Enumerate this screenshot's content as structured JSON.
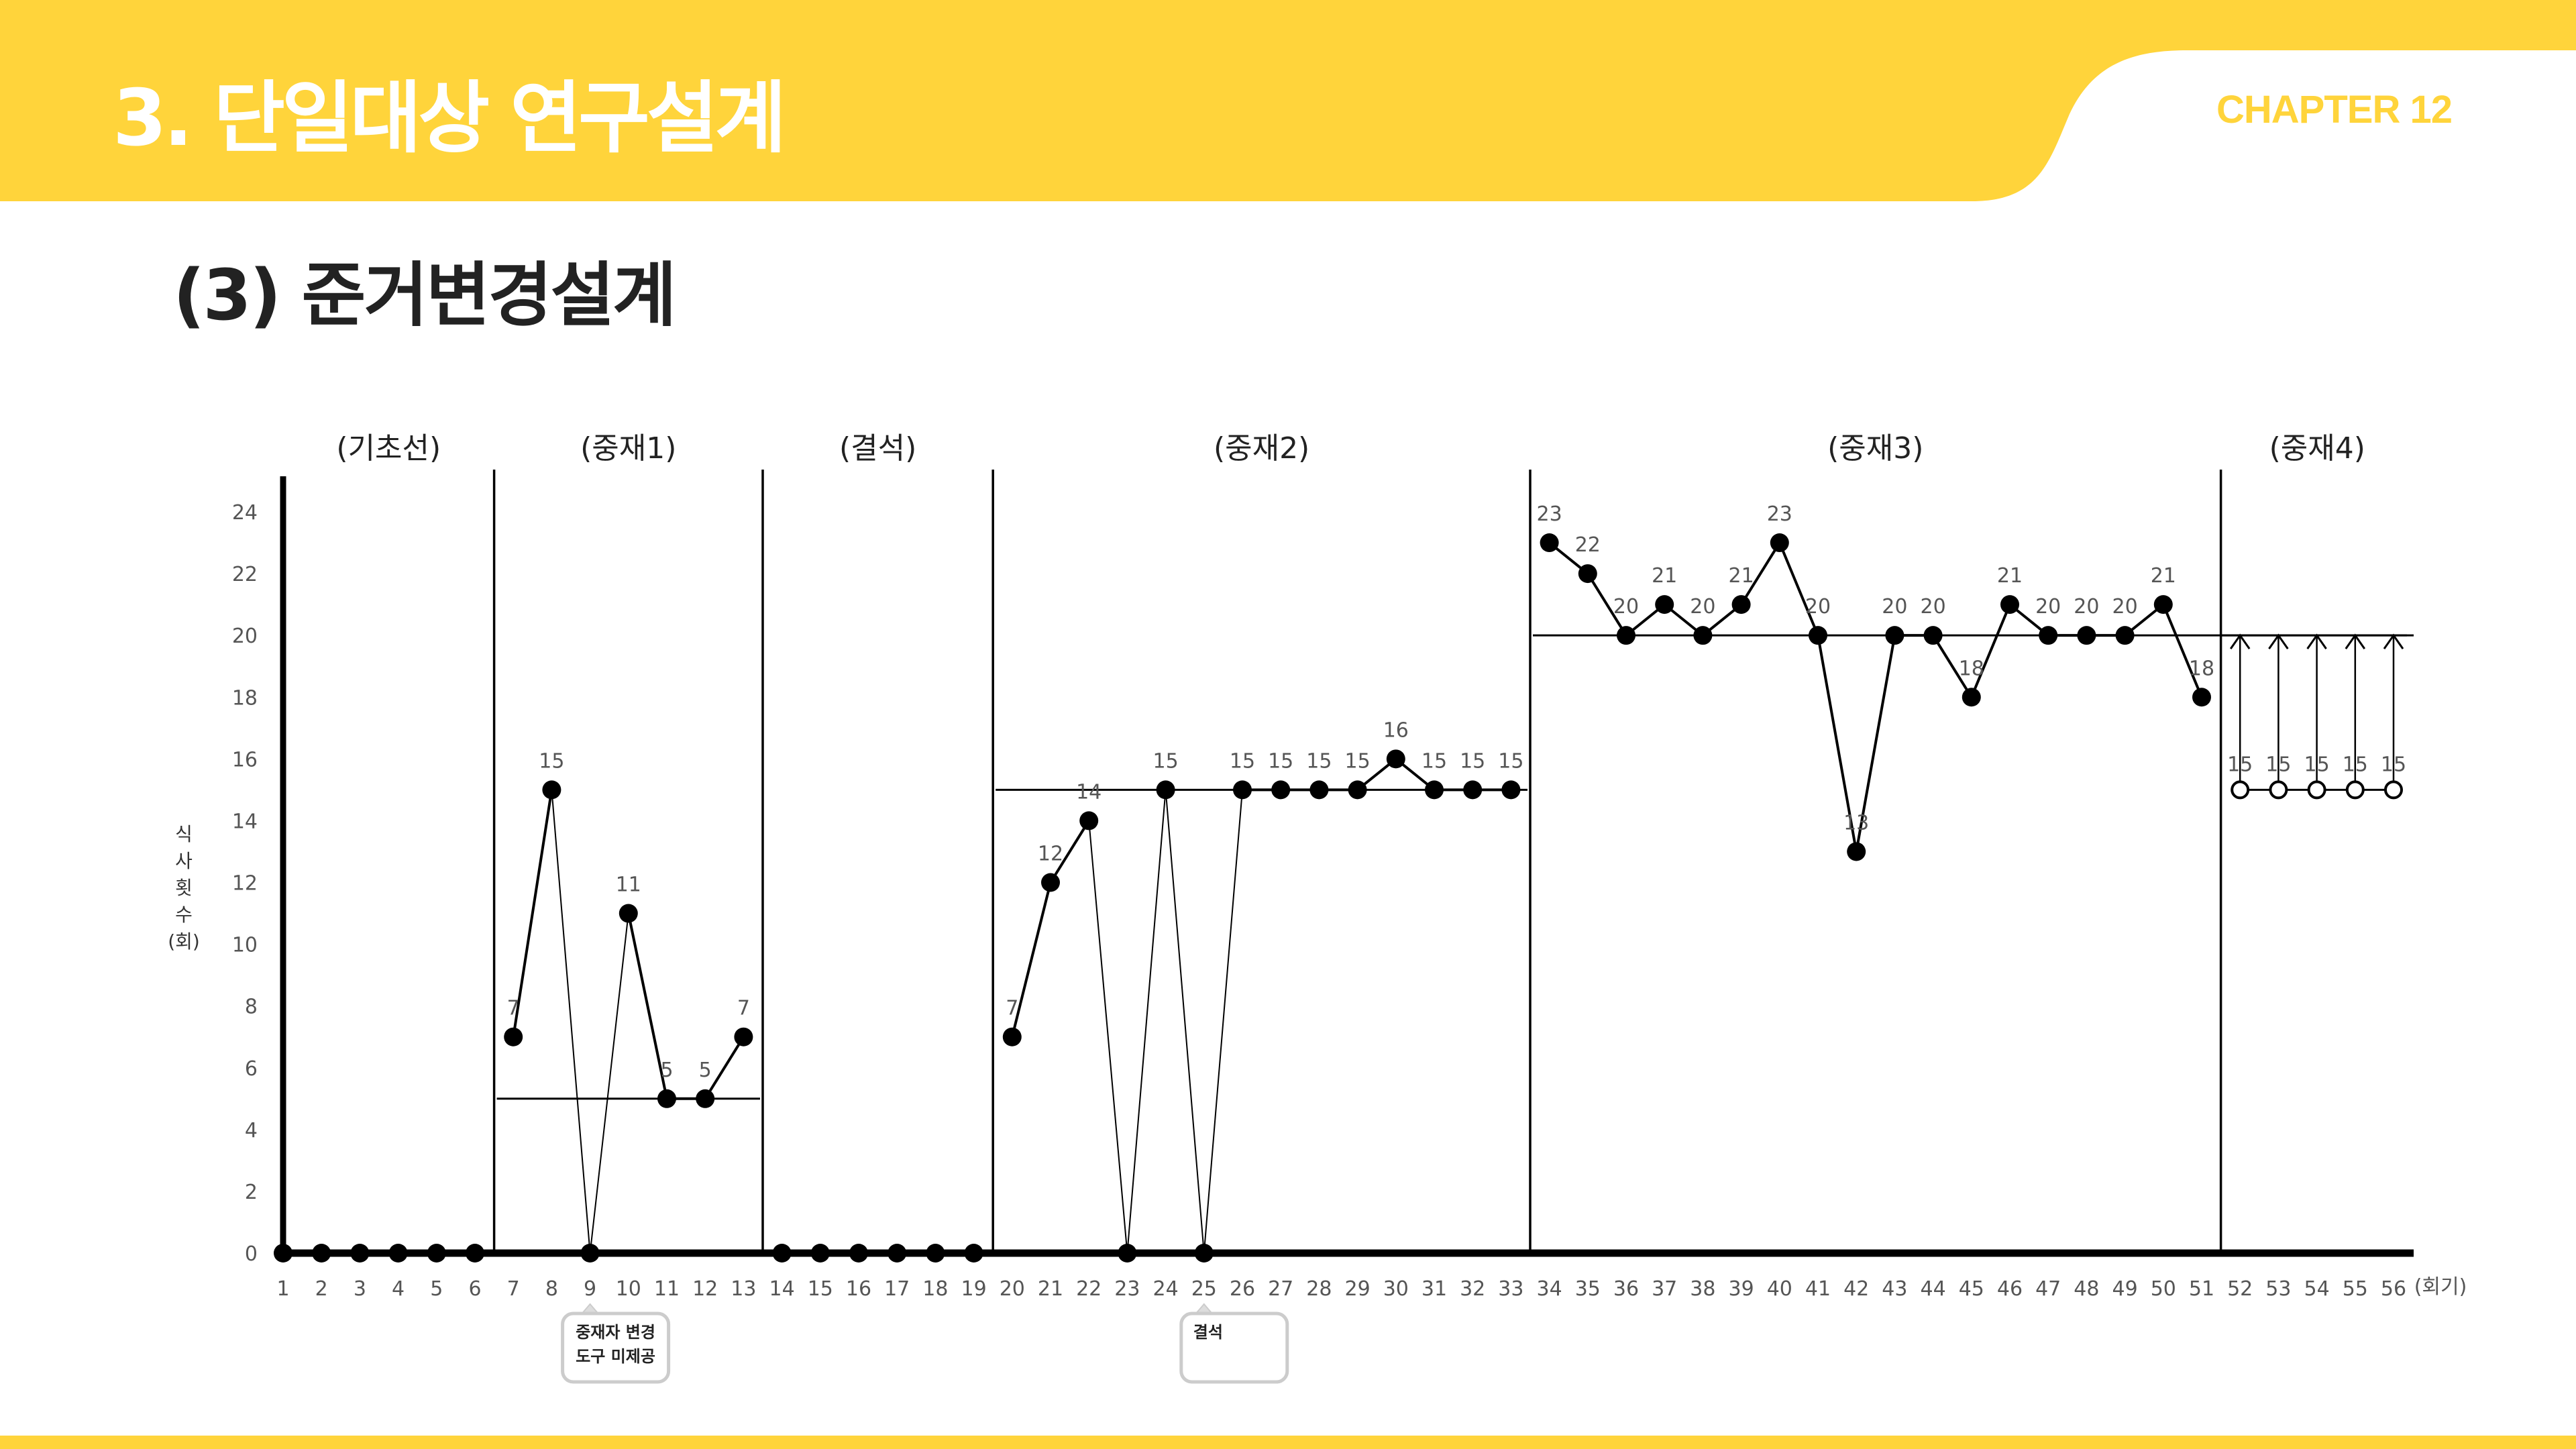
{
  "slide": {
    "title": "3. 단일대상 연구설계",
    "chapter": "CHAPTER 12",
    "subtitle": "(3) 준거변경설계"
  },
  "colors": {
    "accent_yellow": "#ffd43b",
    "header_text": "#ffffff",
    "chart_ink": "#000000"
  },
  "chart_data": {
    "type": "line",
    "title": "",
    "xlabel": "(회기)",
    "ylabel": "식사횟수(회)",
    "ylim": [
      0,
      24
    ],
    "xlim": [
      1,
      56
    ],
    "yticks": [
      0,
      2,
      4,
      6,
      8,
      10,
      12,
      14,
      16,
      18,
      20,
      22,
      24
    ],
    "grid": false,
    "phases": [
      {
        "label": "(기초선)",
        "start": 1,
        "end": 6
      },
      {
        "label": "(중재1)",
        "start": 7,
        "end": 13,
        "criterion": 5
      },
      {
        "label": "(결석)",
        "start": 14,
        "end": 19
      },
      {
        "label": "(중재2)",
        "start": 20,
        "end": 33,
        "criterion": 15
      },
      {
        "label": "(중재3)",
        "start": 34,
        "end": 51,
        "criterion": 20
      },
      {
        "label": "(중재4)",
        "start": 52,
        "end": 56
      }
    ],
    "series": [
      {
        "x": [
          1,
          2,
          3,
          4,
          5,
          6,
          7,
          8,
          9,
          10,
          11,
          12,
          13,
          14,
          15,
          16,
          17,
          18,
          19,
          20,
          21,
          22,
          23,
          24,
          25,
          26,
          27,
          28,
          29,
          30,
          31,
          32,
          33,
          34,
          35,
          36,
          37,
          38,
          39,
          40,
          41,
          42,
          43,
          44,
          45,
          46,
          47,
          48,
          49,
          50,
          51
        ],
        "values": [
          0,
          0,
          0,
          0,
          0,
          0,
          7,
          15,
          0,
          11,
          5,
          5,
          7,
          0,
          0,
          0,
          0,
          0,
          0,
          7,
          12,
          14,
          0,
          15,
          0,
          15,
          15,
          15,
          15,
          16,
          15,
          15,
          15,
          23,
          22,
          20,
          21,
          20,
          21,
          23,
          20,
          13,
          20,
          20,
          18,
          21,
          20,
          20,
          20,
          21,
          18
        ]
      },
      {
        "x": [
          52,
          53,
          54,
          55,
          56
        ],
        "values": [
          15,
          15,
          15,
          15,
          15
        ],
        "marker": "open-circle",
        "arrow_to": 20
      }
    ],
    "annotations": [
      {
        "x": 9,
        "text_lines": [
          "중재자 변경",
          "도구 미제공"
        ]
      },
      {
        "x": 25,
        "text_lines": [
          "결석"
        ]
      }
    ]
  }
}
